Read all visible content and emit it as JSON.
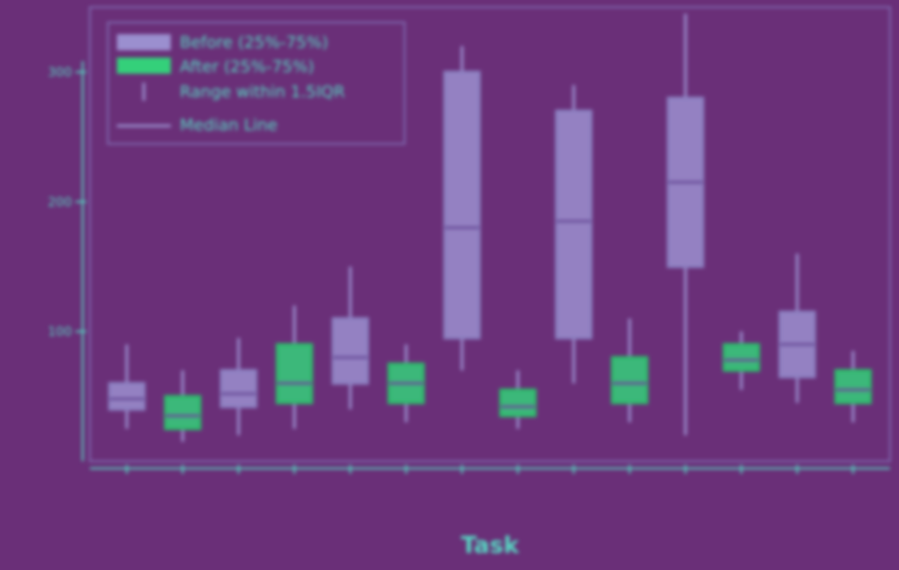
{
  "chart_data": {
    "type": "box",
    "xlabel": "Task",
    "ylabel": "",
    "legend": {
      "placement": "top-left",
      "entries": [
        {
          "name": "Before (25%-75%)",
          "color": "#9b8fcf"
        },
        {
          "name": "After (25%-75%)",
          "color": "#34d07a"
        },
        {
          "name": "Range within 1.5IQR",
          "color": "#9b8fcf"
        },
        {
          "name": "Median Line",
          "color": "#9b8fcf"
        }
      ]
    },
    "y_ticks": [
      {
        "label": "100",
        "value": 100
      },
      {
        "label": "200",
        "value": 200
      },
      {
        "label": "300",
        "value": 300
      }
    ],
    "ylim": [
      0,
      350
    ],
    "x_tick_labels": [
      "",
      "",
      "",
      "",
      "",
      "",
      "",
      "",
      "",
      "",
      "",
      "",
      "",
      "",
      ""
    ],
    "series": [
      {
        "name": "Before",
        "boxes": [
          {
            "x": 0,
            "q1": 40,
            "median": 48,
            "q3": 60,
            "low": 25,
            "high": 90
          },
          {
            "x": 2,
            "q1": 42,
            "median": 52,
            "q3": 70,
            "low": 20,
            "high": 95
          },
          {
            "x": 4,
            "q1": 60,
            "median": 80,
            "q3": 110,
            "low": 40,
            "high": 150
          },
          {
            "x": 6,
            "q1": 95,
            "median": 180,
            "q3": 300,
            "low": 70,
            "high": 320
          },
          {
            "x": 8,
            "q1": 95,
            "median": 185,
            "q3": 270,
            "low": 60,
            "high": 290
          },
          {
            "x": 10,
            "q1": 150,
            "median": 215,
            "q3": 280,
            "low": 20,
            "high": 345
          },
          {
            "x": 12,
            "q1": 65,
            "median": 90,
            "q3": 115,
            "low": 45,
            "high": 160
          }
        ]
      },
      {
        "name": "After",
        "boxes": [
          {
            "x": 1,
            "q1": 25,
            "median": 35,
            "q3": 50,
            "low": 15,
            "high": 70
          },
          {
            "x": 3,
            "q1": 45,
            "median": 60,
            "q3": 90,
            "low": 25,
            "high": 120
          },
          {
            "x": 5,
            "q1": 45,
            "median": 60,
            "q3": 75,
            "low": 30,
            "high": 90
          },
          {
            "x": 7,
            "q1": 35,
            "median": 42,
            "q3": 55,
            "low": 25,
            "high": 70
          },
          {
            "x": 9,
            "q1": 45,
            "median": 60,
            "q3": 80,
            "low": 30,
            "high": 110
          },
          {
            "x": 11,
            "q1": 70,
            "median": 78,
            "q3": 90,
            "low": 55,
            "high": 100
          },
          {
            "x": 13,
            "q1": 45,
            "median": 55,
            "q3": 70,
            "low": 30,
            "high": 85
          }
        ]
      }
    ]
  }
}
